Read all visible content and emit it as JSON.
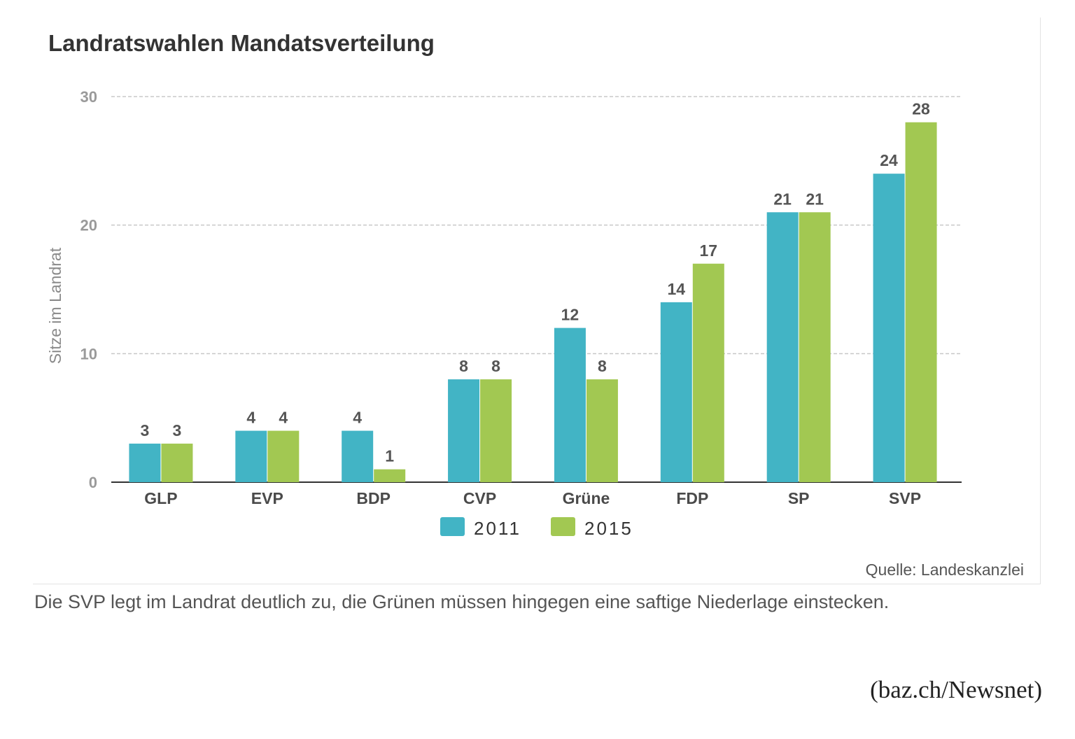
{
  "chart_data": {
    "type": "bar",
    "title": "Landratswahlen Mandatsverteilung",
    "xlabel": "",
    "ylabel": "Sitze im Landrat",
    "ylim": [
      0,
      30
    ],
    "yticks": [
      "0",
      "10",
      "20",
      "30"
    ],
    "categories": [
      "GLP",
      "EVP",
      "BDP",
      "CVP",
      "Grüne",
      "FDP",
      "SP",
      "SVP"
    ],
    "series": [
      {
        "name": "2011",
        "color": "#42b4c5",
        "values": [
          3,
          4,
          4,
          8,
          12,
          14,
          21,
          24
        ]
      },
      {
        "name": "2015",
        "color": "#a2c852",
        "values": [
          3,
          4,
          1,
          8,
          8,
          17,
          21,
          28
        ]
      }
    ],
    "grid": true,
    "legend": "bottom-center",
    "source": "Quelle: Landeskanzlei"
  },
  "caption": "Die SVP legt im Landrat deutlich zu, die Grünen müssen hingegen eine saftige Niederlage einstecken.",
  "credit": "(baz.ch/Newsnet)"
}
